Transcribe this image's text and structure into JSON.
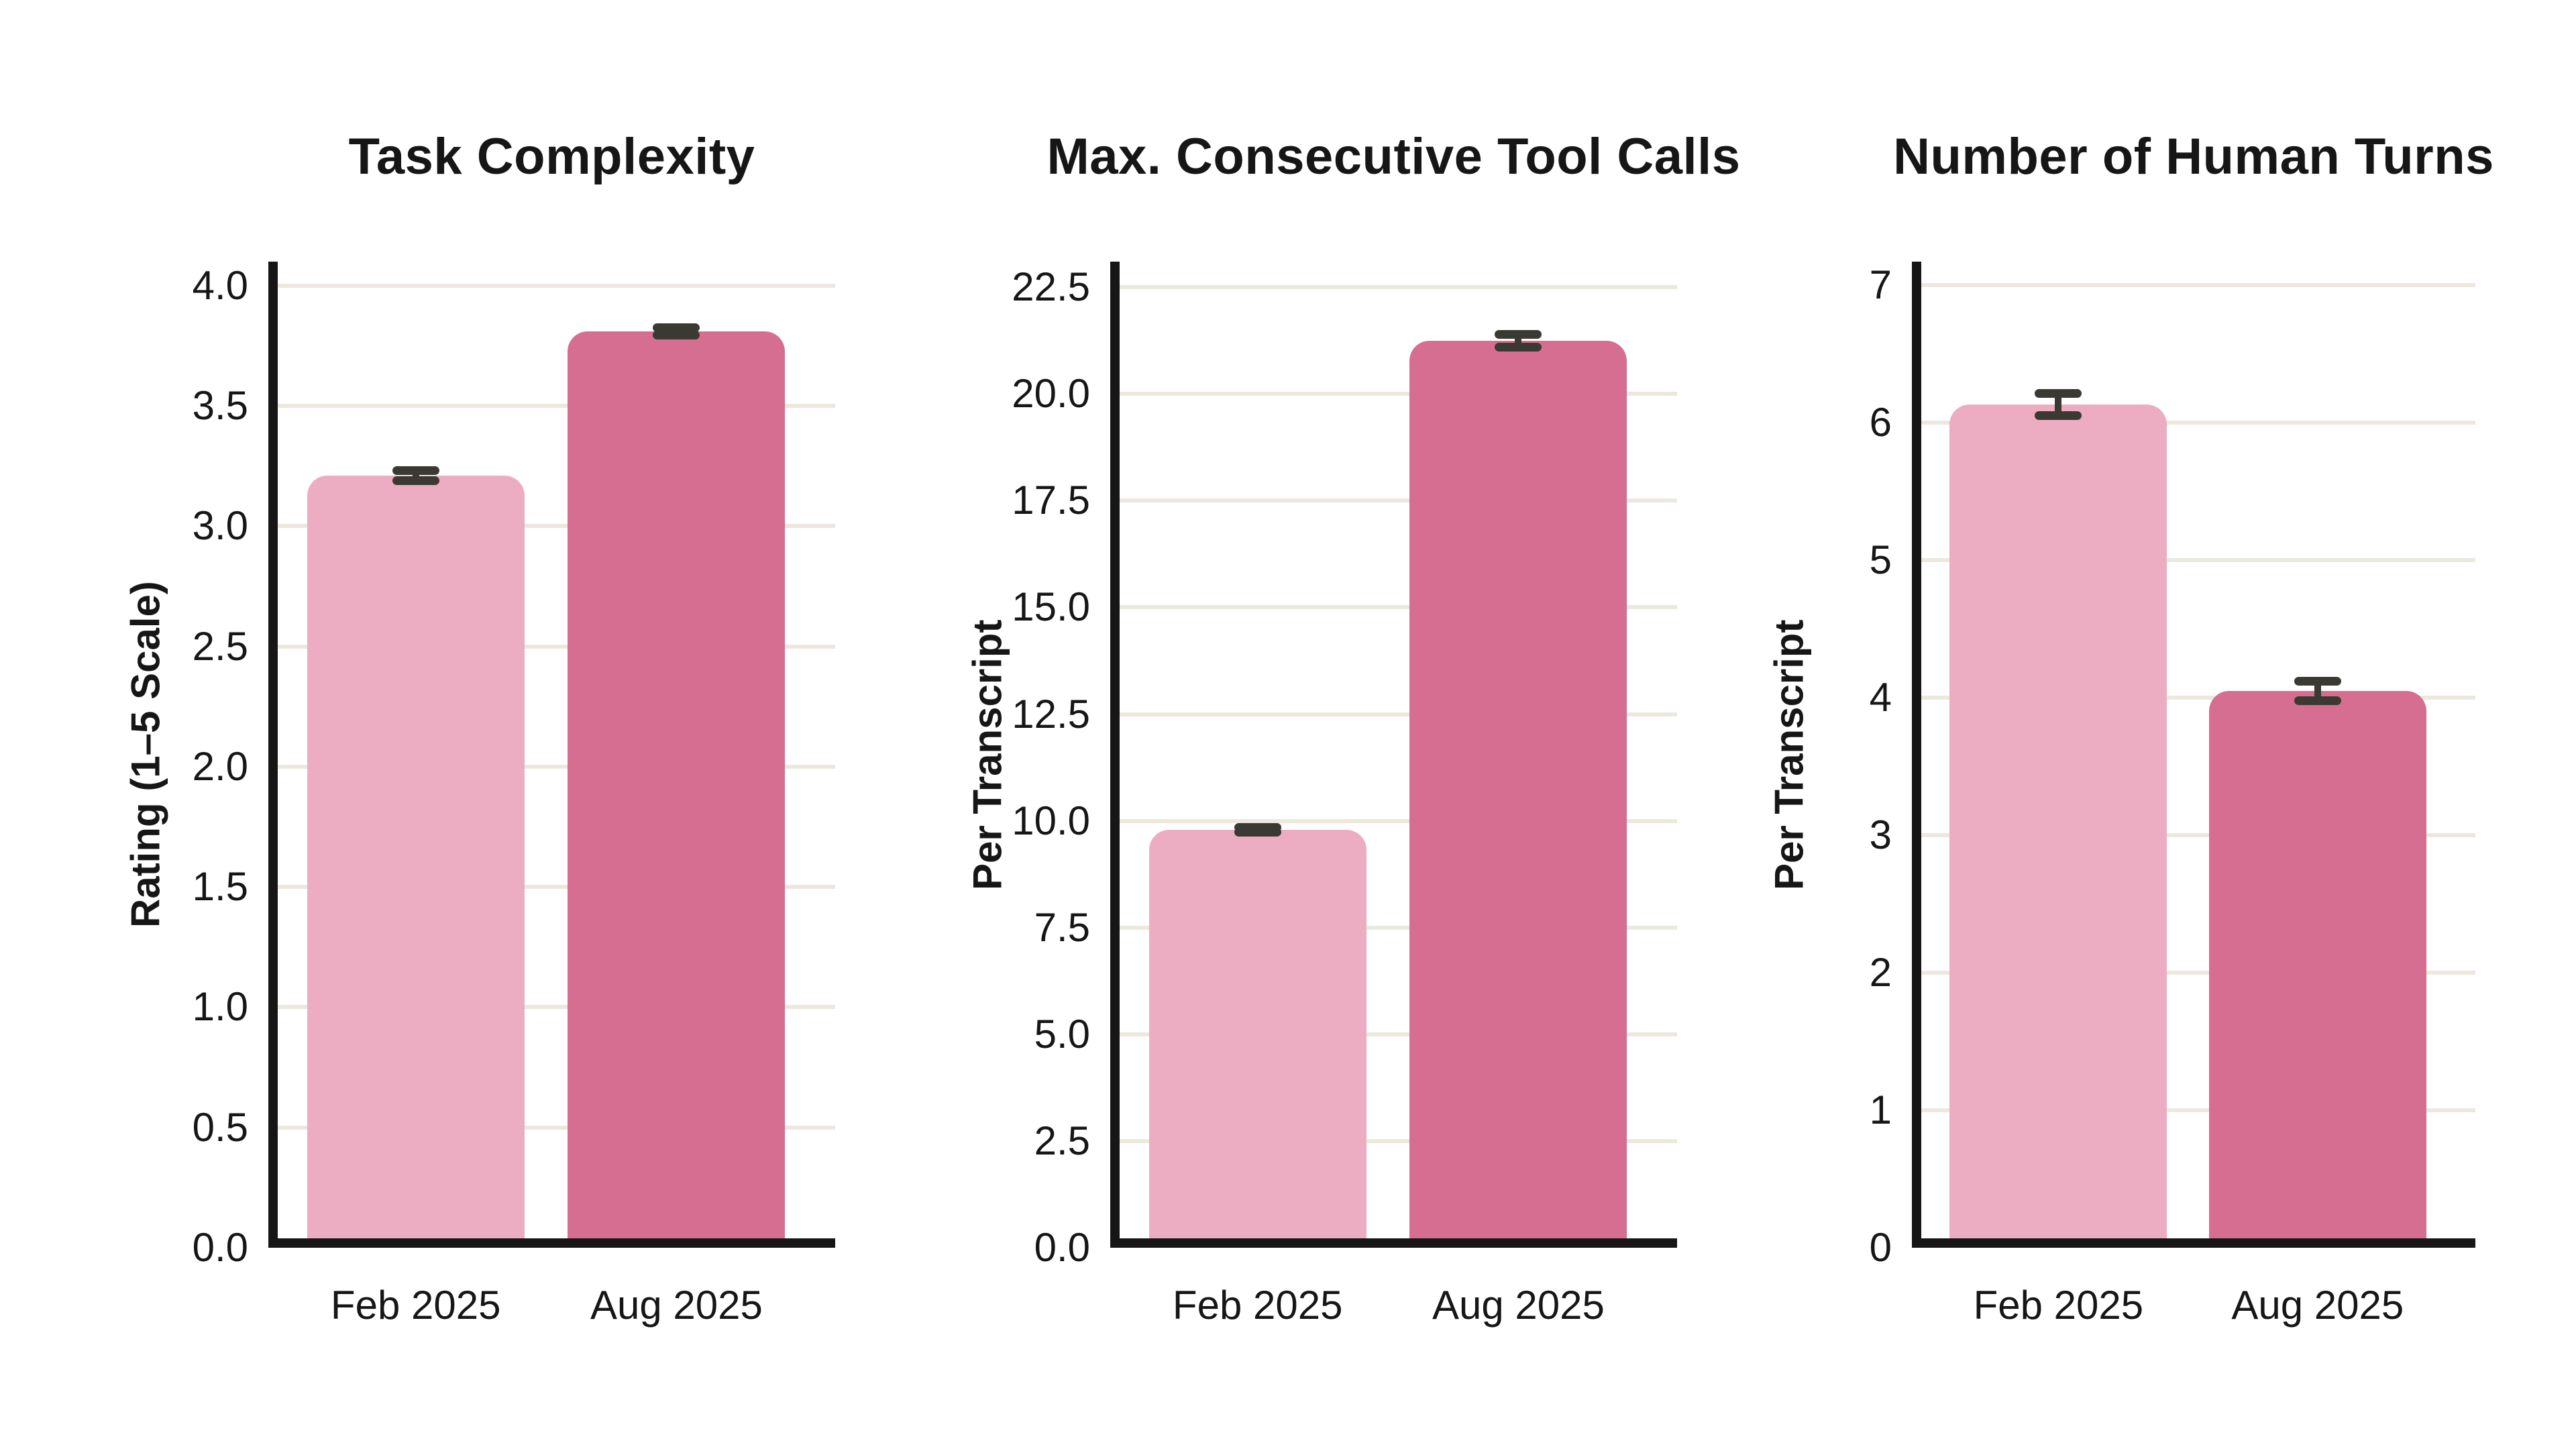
{
  "figure": {
    "background": "#ffffff"
  },
  "palette": {
    "bar_colors": [
      "#ecacc2",
      "#d66e91"
    ],
    "error_bar": "#3b3933",
    "gridline": "#ece8df",
    "axis": "#161616",
    "text": "#161616"
  },
  "chart_data": [
    {
      "type": "bar",
      "title": "Task Complexity",
      "xlabel": "",
      "ylabel": "Rating (1–5 Scale)",
      "categories": [
        "Feb 2025",
        "Aug 2025"
      ],
      "values": [
        3.21,
        3.81
      ],
      "errors": [
        0.02,
        0.015
      ],
      "yticks": [
        0.0,
        0.5,
        1.0,
        1.5,
        2.0,
        2.5,
        3.0,
        3.5,
        4.0
      ],
      "ytick_labels": [
        "0.0",
        "0.5",
        "1.0",
        "1.5",
        "2.0",
        "2.5",
        "3.0",
        "3.5",
        "4.0"
      ],
      "ylim": [
        0,
        4.1
      ],
      "grid": "horizontal",
      "legend": "none"
    },
    {
      "type": "bar",
      "title": "Max. Consecutive Tool Calls",
      "xlabel": "",
      "ylabel": "Per Transcript",
      "categories": [
        "Feb 2025",
        "Aug 2025"
      ],
      "values": [
        9.79,
        21.25
      ],
      "errors": [
        0.06,
        0.15
      ],
      "yticks": [
        0.0,
        2.5,
        5.0,
        7.5,
        10.0,
        12.5,
        15.0,
        17.5,
        20.0,
        22.5
      ],
      "ytick_labels": [
        "0.0",
        "2.5",
        "5.0",
        "7.5",
        "10.0",
        "12.5",
        "15.0",
        "17.5",
        "20.0",
        "22.5"
      ],
      "ylim": [
        0,
        23.1
      ],
      "grid": "horizontal",
      "legend": "none"
    },
    {
      "type": "bar",
      "title": "Number of Human Turns",
      "xlabel": "",
      "ylabel": "Per Transcript",
      "categories": [
        "Feb 2025",
        "Aug 2025"
      ],
      "values": [
        6.13,
        4.05
      ],
      "errors": [
        0.08,
        0.07
      ],
      "yticks": [
        0,
        1,
        2,
        3,
        4,
        5,
        6,
        7
      ],
      "ytick_labels": [
        "0",
        "1",
        "2",
        "3",
        "4",
        "5",
        "6",
        "7"
      ],
      "ylim": [
        0,
        7.17
      ],
      "grid": "horizontal",
      "legend": "none"
    }
  ]
}
